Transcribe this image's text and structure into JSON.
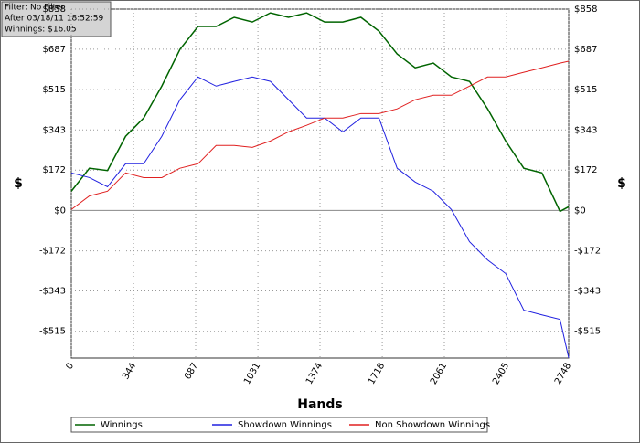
{
  "chart_data": {
    "type": "line",
    "annotations": [
      "Filter: No Filter",
      "After 03/18/11 18:52:59",
      "Winnings: $16.05"
    ],
    "xlabel": "Hands",
    "ylabel": "$",
    "y2label": "$",
    "x": [
      0,
      100,
      200,
      300,
      400,
      500,
      600,
      700,
      800,
      900,
      1000,
      1100,
      1200,
      1300,
      1400,
      1500,
      1600,
      1700,
      1800,
      1900,
      2000,
      2100,
      2200,
      2300,
      2400,
      2500,
      2600,
      2700,
      2748
    ],
    "series": [
      {
        "name": "Winnings",
        "color": "#006400",
        "values": [
          82,
          180,
          170,
          316,
          394,
          530,
          686,
          784,
          784,
          823,
          803,
          842,
          823,
          842,
          803,
          803,
          823,
          764,
          667,
          608,
          628,
          569,
          550,
          433,
          296,
          180,
          160,
          -4,
          16
        ]
      },
      {
        "name": "Showdown Winnings",
        "color": "#2020e0",
        "values": [
          160,
          140,
          101,
          199,
          199,
          316,
          472,
          569,
          530,
          550,
          569,
          550,
          472,
          394,
          394,
          335,
          394,
          394,
          180,
          121,
          82,
          4,
          -133,
          -211,
          -269,
          -425,
          -445,
          -464,
          -628
        ]
      },
      {
        "name": "Non Showdown Winnings",
        "color": "#e02020",
        "values": [
          4,
          62,
          82,
          160,
          140,
          140,
          180,
          199,
          277,
          277,
          269,
          296,
          335,
          363,
          394,
          394,
          413,
          413,
          433,
          472,
          491,
          491,
          530,
          569,
          569,
          589,
          608,
          628,
          636
        ]
      }
    ],
    "xlim": [
      0,
      2748
    ],
    "xticks": [
      0,
      344,
      687,
      1031,
      1374,
      1718,
      2061,
      2405,
      2748
    ],
    "ylim": [
      -629,
      858
    ],
    "yticks": [
      {
        "value": -515,
        "label": "-$515"
      },
      {
        "value": -343,
        "label": "-$343"
      },
      {
        "value": -172,
        "label": "-$172"
      },
      {
        "value": 0,
        "label": "$0"
      },
      {
        "value": 172,
        "label": "$172"
      },
      {
        "value": 343,
        "label": "$343"
      },
      {
        "value": 515,
        "label": "$515"
      },
      {
        "value": 687,
        "label": "$687"
      },
      {
        "value": 858,
        "label": "$858"
      }
    ],
    "grid": true,
    "legend": "bottom"
  }
}
